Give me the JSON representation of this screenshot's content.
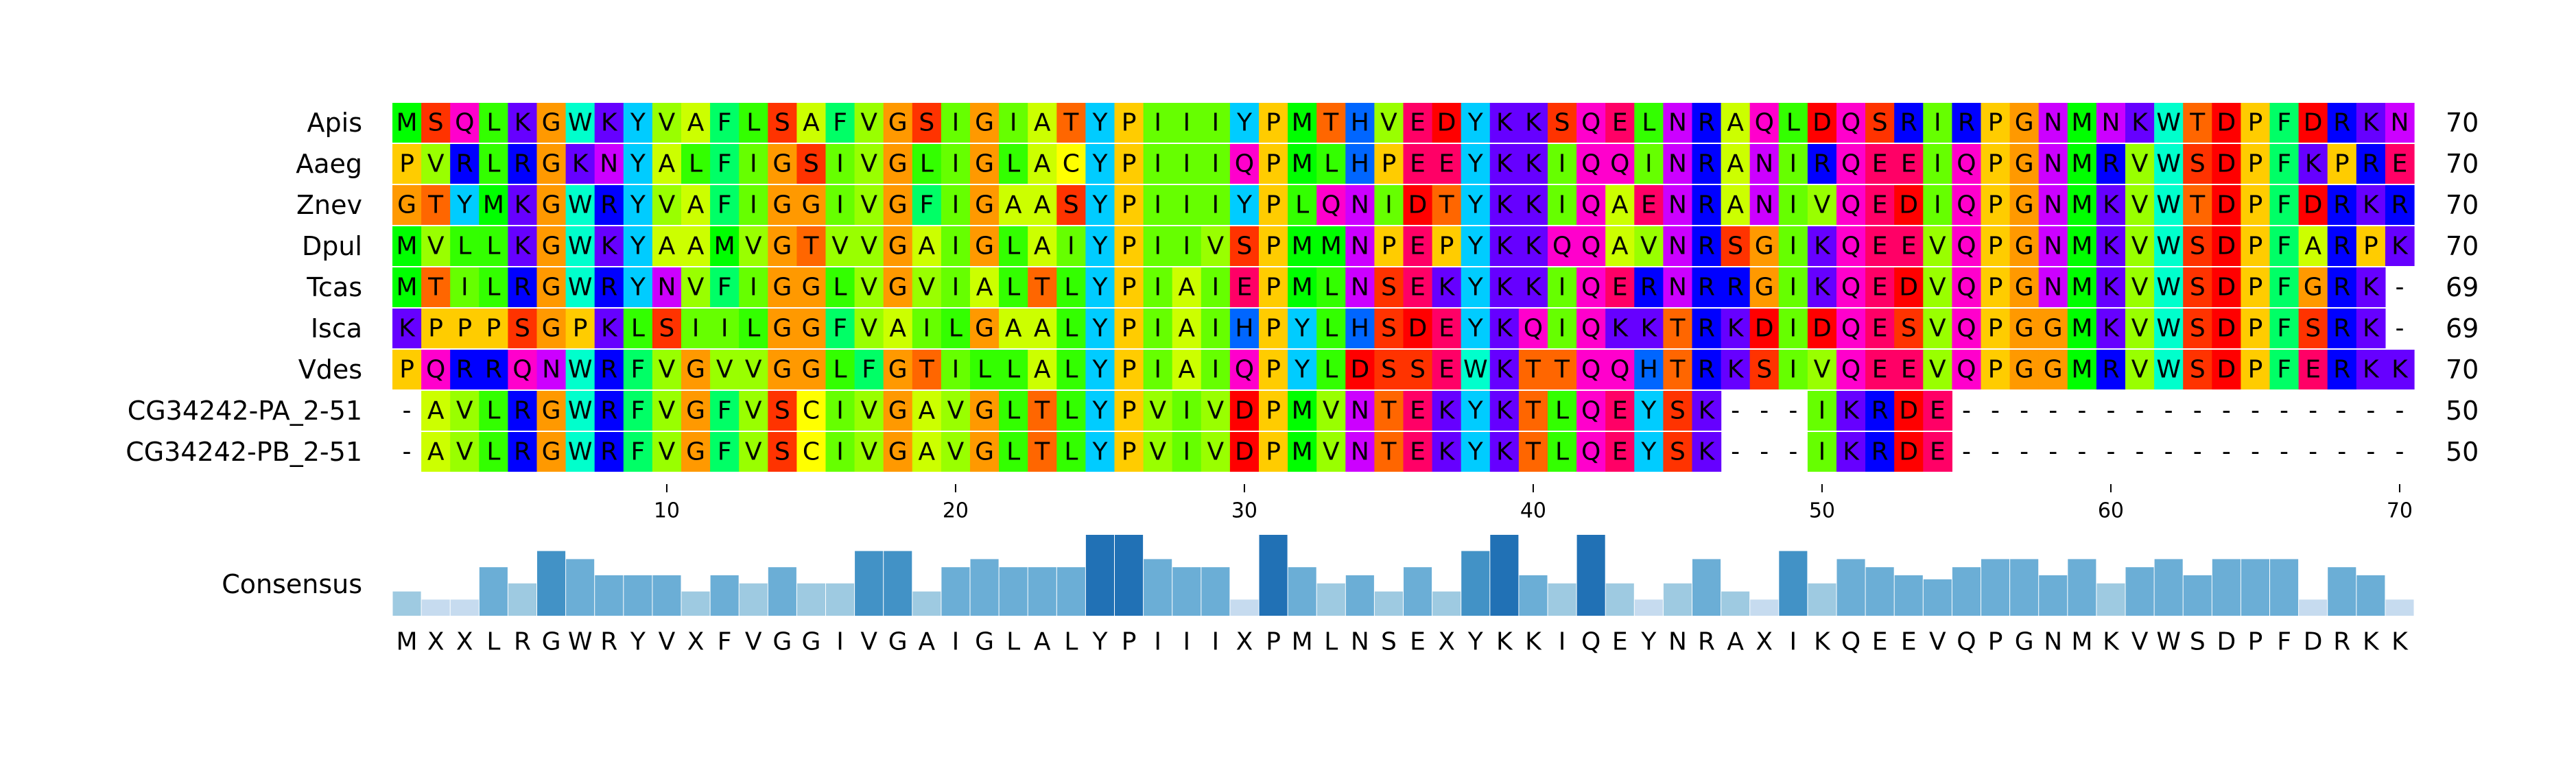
{
  "chart_data": {
    "type": "heatmap",
    "subtype": "multiple-sequence-alignment",
    "sequences": [
      {
        "name": "Apis",
        "seq": "MSQLKGWKYVAFLSAFVGSIGIATYPIIIYPMTHVEDYKKSQELNRAQLDQSRIRPGNMNKWTDPFDRKN",
        "count": "70"
      },
      {
        "name": "Aaeg",
        "seq": "PVRLRGKNYALFIGSIVGLIGLACYPIIIQPMLHPEEYKKIQQINRANIRQEEIQPGNMRVWSDPFKPRE",
        "count": "70"
      },
      {
        "name": "Znev",
        "seq": "GTYMKGWRYVAFIGGIVGFIGAASYPIIIYPLQNIDTYKKIQAENRANIVQEDIQPGNMKVWTDPFDRKR",
        "count": "70"
      },
      {
        "name": "Dpul",
        "seq": "MVLLKGWKYAAMVGTVVGAIGLAIYPIIVSPMMNPEPYKKQQAVNRSGIKQEEVQPGNMKVWSDPFARPK",
        "count": "70"
      },
      {
        "name": "Tcas",
        "seq": "MTILRGWRYNVFIGGLVGVIALTLYPIAIEPMLNSEKYKKIQERNRRGIKQEDVQPGNMKVWSDPFGRK-",
        "count": "69"
      },
      {
        "name": "Isca",
        "seq": "KPPPSGPKLSIILGGFVAILGAALYPIAIHPYLHSDEYKQIQKKTRKDIDQESVQPGGMKVWSDPFSRK-",
        "count": "69"
      },
      {
        "name": "Vdes",
        "seq": "PQRRQNWRFVGVVGGLFGTILLALYPIAIQPYLDSSEWKTTQQHTRKSIVQEEVQPGGMRVWSDPFERKK",
        "count": "70"
      },
      {
        "name": "CG34242-PA_2-51",
        "seq": "-AVLRGWRFVGFVSCIVGAVGLTLYPVIVDPMVNTEKYKTLQEYSK---IKRDE----------------",
        "count": "50"
      },
      {
        "name": "CG34242-PB_2-51",
        "seq": "-AVLRGWRFVGFVSCIVGAVGLTLYPVIVDPMVNTEKYKTLQEYSK---IKRDE----------------",
        "count": "50"
      }
    ],
    "x_ticks": [
      "10",
      "20",
      "30",
      "40",
      "50",
      "60",
      "70"
    ],
    "x_tick_positions": [
      10,
      20,
      30,
      40,
      50,
      60,
      70
    ],
    "consensus_label": "Consensus",
    "consensus": "MXXLRGWRYVXFVGGIVGAIGLALYPIIIXPMLNSEXYKKIQEYNRAXIKQEEVQPGNMKVWSDPFDRKK",
    "conservation": [
      0.3,
      0.2,
      0.2,
      0.6,
      0.4,
      0.8,
      0.7,
      0.5,
      0.5,
      0.5,
      0.3,
      0.5,
      0.4,
      0.6,
      0.4,
      0.4,
      0.8,
      0.8,
      0.3,
      0.6,
      0.7,
      0.6,
      0.6,
      0.6,
      1.0,
      1.0,
      0.7,
      0.6,
      0.6,
      0.2,
      1.0,
      0.6,
      0.4,
      0.5,
      0.3,
      0.6,
      0.3,
      0.8,
      1.0,
      0.5,
      0.4,
      1.0,
      0.4,
      0.2,
      0.4,
      0.7,
      0.3,
      0.2,
      0.8,
      0.4,
      0.7,
      0.6,
      0.5,
      0.45,
      0.6,
      0.7,
      0.7,
      0.5,
      0.7,
      0.4,
      0.6,
      0.7,
      0.5,
      0.7,
      0.7,
      0.7,
      0.2,
      0.6,
      0.5,
      0.2
    ],
    "conservation_colors": [
      "#c6dbef",
      "#9ecae1",
      "#6baed6",
      "#4292c6",
      "#2171b5"
    ],
    "residue_colors": {
      "A": "#ccff00",
      "V": "#99ff00",
      "I": "#66ff00",
      "L": "#33ff00",
      "M": "#00ff00",
      "F": "#00ff66",
      "W": "#00ffcc",
      "Y": "#00ccff",
      "H": "#0066ff",
      "K": "#6600ff",
      "R": "#0000ff",
      "N": "#cc00ff",
      "D": "#ff0000",
      "E": "#ff0066",
      "Q": "#ff00cc",
      "S": "#ff3300",
      "T": "#ff6600",
      "G": "#ff9900",
      "P": "#ffcc00",
      "C": "#ffff00",
      "-": "#ffffff"
    },
    "cell_colors": {
      "Apis": [
        "#00ff00",
        "#ff3300",
        "#ff00cc",
        "#33ff00",
        "#6600ff",
        "#ff9900",
        "#00ffcc",
        "#6600ff",
        "#00ccff",
        "#99ff00",
        "#ccff00",
        "#00ff66",
        "#33ff00",
        "#ff3300",
        "#ccff00",
        "#00ff66",
        "#99ff00",
        "#ff9900",
        "#ff3300",
        "#66ff00",
        "#ff9900",
        "#66ff00",
        "#ccff00",
        "#ff6600",
        "#00ccff",
        "#ffcc00",
        "#66ff00",
        "#66ff00",
        "#66ff00",
        "#00ccff",
        "#ffcc00",
        "#00ff00",
        "#ff6600",
        "#0066ff",
        "#99ff00",
        "#ff0066",
        "#ff0000",
        "#00ccff",
        "#6600ff",
        "#6600ff",
        "#ff3300",
        "#ff00cc",
        "#ff0066",
        "#33ff00",
        "#cc00ff",
        "#0000ff",
        "#ccff00",
        "#ff00cc",
        "#33ff00",
        "#ff0000",
        "#ff00cc",
        "#ff3300",
        "#0000ff",
        "#66ff00",
        "#0000ff",
        "#ffcc00",
        "#ff9900",
        "#cc00ff",
        "#00ff00",
        "#cc00ff",
        "#6600ff",
        "#00ffcc",
        "#ff6600",
        "#ff0000",
        "#ffcc00",
        "#00ff66",
        "#ff0000",
        "#0000ff",
        "#6600ff",
        "#cc00ff"
      ]
    }
  }
}
